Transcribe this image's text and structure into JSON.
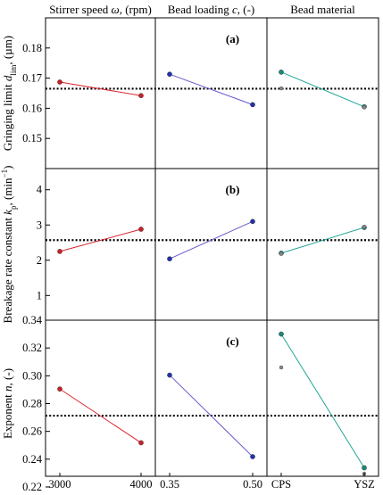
{
  "chart_data": {
    "type": "line",
    "column_headers": [
      "Stirrer speed ω, (rpm)",
      "Bead loading c, (-)",
      "Bead material"
    ],
    "x_tick_labels": [
      [
        "3000",
        "4000"
      ],
      [
        "0.35",
        "0.50"
      ],
      [
        "CPS",
        "YSZ"
      ]
    ],
    "rows": [
      {
        "panel_label": "(a)",
        "ylabel": "Gringing limit d_lim, (µm)",
        "ylim": [
          0.14,
          0.19
        ],
        "yticks": [
          0.15,
          0.16,
          0.17,
          0.18
        ],
        "ytick_labels": [
          "0.15",
          "0.16",
          "0.17",
          "0.18"
        ],
        "mean": 0.1665,
        "series": [
          {
            "values": [
              0.1687,
              0.1642
            ]
          },
          {
            "values": [
              0.1713,
              0.1612
            ]
          },
          {
            "values": [
              0.172,
              0.1605
            ]
          }
        ],
        "extra_points": [
          [
            0.1666,
            0.1603
          ]
        ]
      },
      {
        "panel_label": "(b)",
        "ylabel": "Breakage rate constant k_p, (min⁻¹)",
        "ylim": [
          0.3,
          4.6
        ],
        "yticks": [
          1,
          2,
          3,
          4
        ],
        "ytick_labels": [
          "1",
          "2",
          "3",
          "4"
        ],
        "mean": 2.57,
        "series": [
          {
            "values": [
              2.25,
              2.88
            ]
          },
          {
            "values": [
              2.04,
              3.1
            ]
          },
          {
            "values": [
              2.2,
              2.93
            ]
          }
        ],
        "extra_points": [
          [
            2.18,
            2.95
          ]
        ]
      },
      {
        "panel_label": "(c)",
        "ylabel": "Exponent n, (-)",
        "ylim": [
          0.22,
          0.34
        ],
        "yticks": [
          0.22,
          0.24,
          0.26,
          0.28,
          0.3,
          0.32,
          0.34
        ],
        "ytick_labels": [
          "0.22",
          "0.24",
          "0.26",
          "0.28",
          "0.30",
          "0.32",
          "0.34"
        ],
        "mean": 0.2713,
        "series": [
          {
            "values": [
              0.2905,
              0.2518
            ]
          },
          {
            "values": [
              0.3005,
              0.2418
            ]
          },
          {
            "values": [
              0.33,
              0.2338
            ]
          }
        ],
        "extra_points": [
          [
            0.306,
            0.2295
          ]
        ]
      }
    ],
    "series_colors": [
      "#d9262e",
      "#6a5acd",
      "#20a696"
    ],
    "marker_colors": [
      "#cc1f26",
      "#2233aa",
      "#1b8a7a"
    ],
    "mean_line_style": "dotted",
    "grid": false
  }
}
